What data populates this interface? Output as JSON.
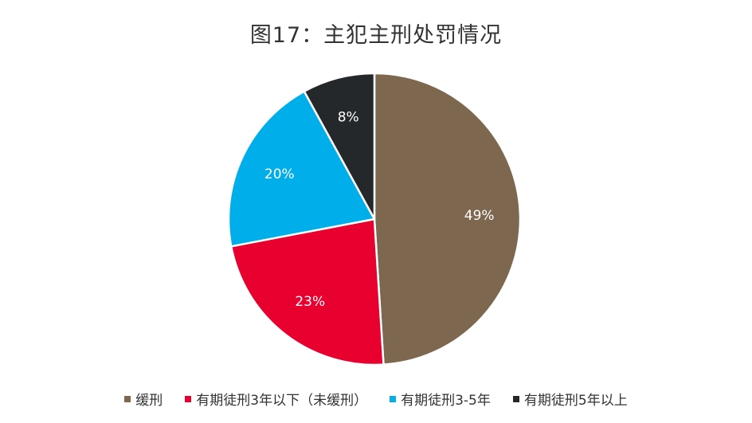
{
  "chart_data": {
    "type": "pie",
    "title": "图17：主犯主刑处罚情况",
    "categories": [
      "缓刑",
      "有期徒刑3年以下（未缓刑）",
      "有期徒刑3-5年",
      "有期徒刑5年以上"
    ],
    "values": [
      49,
      23,
      20,
      8
    ],
    "labels": [
      "49%",
      "23%",
      "20%",
      "8%"
    ],
    "colors": [
      "#7d674e",
      "#e8002f",
      "#00aeea",
      "#25282b"
    ],
    "legend_position": "bottom"
  }
}
